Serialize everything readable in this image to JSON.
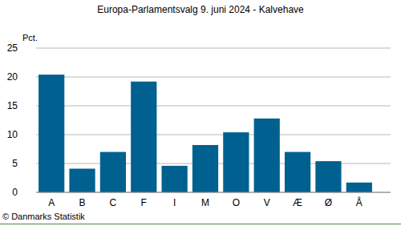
{
  "chart_data": {
    "type": "bar",
    "title": "Europa-Parlamentsvalg 9. juni 2024 - Kalvehave",
    "y_label": "Pct.",
    "source": "© Danmarks Statistik",
    "categories": [
      "A",
      "B",
      "C",
      "F",
      "I",
      "M",
      "O",
      "V",
      "Æ",
      "Ø",
      "Å"
    ],
    "values": [
      20.4,
      4.1,
      7.0,
      19.2,
      4.6,
      8.2,
      10.4,
      12.8,
      7.0,
      5.4,
      1.7
    ],
    "color": "#00608f",
    "ylim": [
      0,
      25
    ],
    "yticks": [
      0,
      5,
      10,
      15,
      20,
      25
    ],
    "grid": true
  }
}
